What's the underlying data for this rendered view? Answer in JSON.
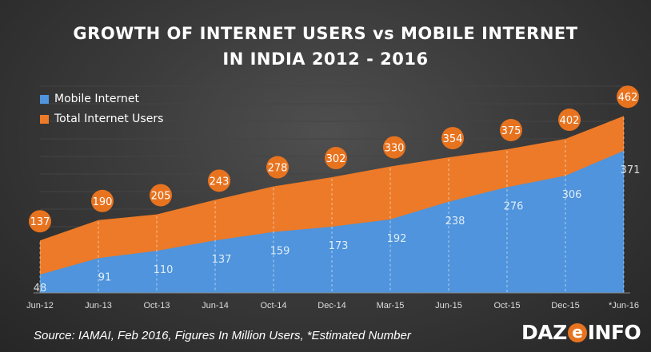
{
  "header": {
    "title_line1": "GROWTH OF INTERNET USERS vs MOBILE INTERNET",
    "title_line2": "IN INDIA 2012 - 2016"
  },
  "colors": {
    "mobile": "#4f94dc",
    "total": "#ec7a28",
    "bubble": "#e8731f",
    "axis_text": "#dddddd",
    "grid": "#6a6a6a"
  },
  "chart_data": {
    "type": "area",
    "title": "GROWTH OF INTERNET USERS vs MOBILE INTERNET IN INDIA 2012 - 2016",
    "categories": [
      "Jun-12",
      "Jun-13",
      "Oct-13",
      "Jun-14",
      "Oct-14",
      "Dec-14",
      "Mar-15",
      "Jun-15",
      "Oct-15",
      "Dec-15",
      "*Jun-16"
    ],
    "series": [
      {
        "name": "Mobile Internet",
        "values": [
          48,
          91,
          110,
          137,
          159,
          173,
          192,
          238,
          276,
          306,
          371
        ]
      },
      {
        "name": "Total Internet Users",
        "values": [
          137,
          190,
          205,
          243,
          278,
          302,
          330,
          354,
          375,
          402,
          462
        ]
      }
    ],
    "ylim": [
      0,
      480
    ],
    "legend_position": "top-left",
    "grid": "vertical dashed"
  },
  "legend": {
    "items": [
      {
        "label": "Mobile Internet"
      },
      {
        "label": "Total Internet Users"
      }
    ]
  },
  "footer": {
    "source": "Source: IAMAI, Feb 2016, Figures In Million Users, *Estimated Number",
    "brand_left": "DAZ",
    "brand_mid": "e",
    "brand_right": "INFO"
  }
}
